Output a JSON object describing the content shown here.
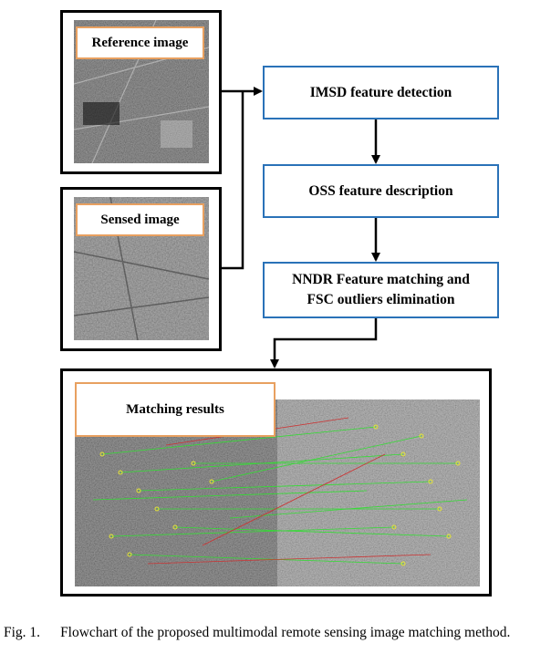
{
  "inputs": {
    "reference": {
      "label": "Reference image"
    },
    "sensed": {
      "label": "Sensed image"
    }
  },
  "steps": [
    {
      "label": "IMSD  feature detection"
    },
    {
      "label": "OSS  feature description"
    },
    {
      "line1": "NNDR Feature matching and",
      "line2": "FSC outliers elimination"
    }
  ],
  "results": {
    "label": "Matching results"
  },
  "caption": {
    "label": "Fig. 1.",
    "text": "Flowchart of the proposed multimodal remote sensing image matching method."
  },
  "colors": {
    "step_border": "#2a72b8",
    "label_border": "#e8a060",
    "match_line_inlier": "#33dd33",
    "match_line_outlier": "#cc3333",
    "keypoint": "#e6e633"
  }
}
